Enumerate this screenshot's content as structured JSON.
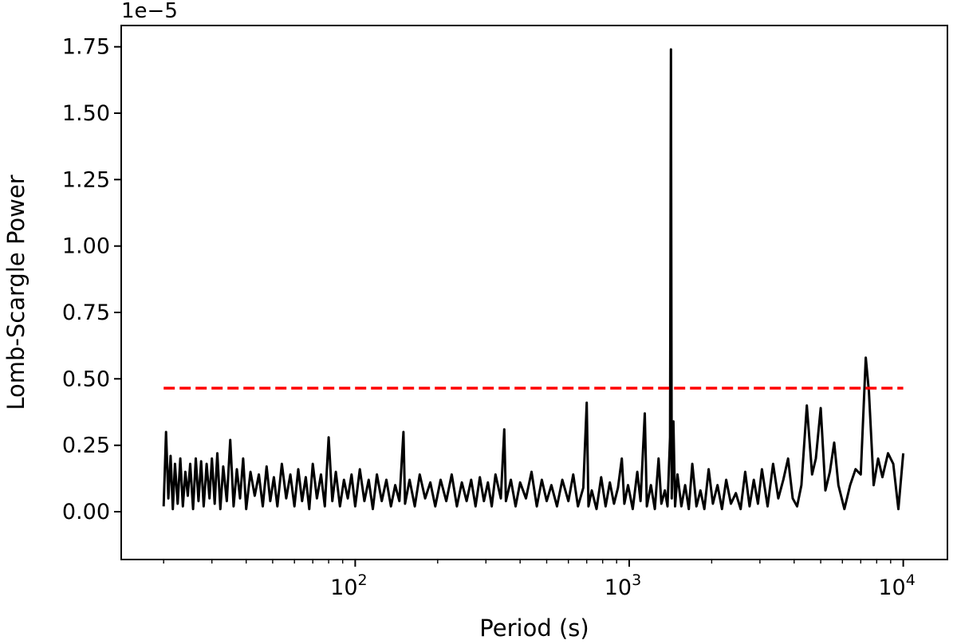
{
  "chart_data": {
    "type": "line",
    "xlabel": "Period (s)",
    "ylabel": "Lomb-Scargle Power",
    "y_offset_label": "1e−5",
    "x_scale": "log",
    "xlim": [
      14,
      14500
    ],
    "ylim": [
      -0.18,
      1.83
    ],
    "x_ticks": [
      {
        "value": 100,
        "base": "10",
        "exp": "2"
      },
      {
        "value": 1000,
        "base": "10",
        "exp": "3"
      },
      {
        "value": 10000,
        "base": "10",
        "exp": "4"
      }
    ],
    "y_ticks": [
      {
        "value": 0.0,
        "label": "0.00"
      },
      {
        "value": 0.25,
        "label": "0.25"
      },
      {
        "value": 0.5,
        "label": "0.50"
      },
      {
        "value": 0.75,
        "label": "0.75"
      },
      {
        "value": 1.0,
        "label": "1.00"
      },
      {
        "value": 1.25,
        "label": "1.25"
      },
      {
        "value": 1.5,
        "label": "1.50"
      },
      {
        "value": 1.75,
        "label": "1.75"
      }
    ],
    "grid": false,
    "legend": "none",
    "series": [
      {
        "color": "#000000",
        "style": "solid",
        "points": [
          [
            20,
            0.02
          ],
          [
            20.4,
            0.3
          ],
          [
            20.8,
            0.05
          ],
          [
            21.2,
            0.21
          ],
          [
            21.6,
            0.01
          ],
          [
            22,
            0.18
          ],
          [
            22.5,
            0.03
          ],
          [
            23,
            0.2
          ],
          [
            23.5,
            0.02
          ],
          [
            24,
            0.15
          ],
          [
            24.5,
            0.06
          ],
          [
            25,
            0.18
          ],
          [
            25.6,
            0.01
          ],
          [
            26.2,
            0.2
          ],
          [
            26.8,
            0.04
          ],
          [
            27.4,
            0.19
          ],
          [
            28,
            0.02
          ],
          [
            28.7,
            0.18
          ],
          [
            29.4,
            0.05
          ],
          [
            30,
            0.2
          ],
          [
            30.7,
            0.03
          ],
          [
            31.4,
            0.22
          ],
          [
            32.2,
            0.01
          ],
          [
            33,
            0.17
          ],
          [
            34,
            0.04
          ],
          [
            35,
            0.27
          ],
          [
            36,
            0.02
          ],
          [
            37,
            0.16
          ],
          [
            38,
            0.05
          ],
          [
            39,
            0.2
          ],
          [
            40,
            0.01
          ],
          [
            41.5,
            0.15
          ],
          [
            43,
            0.06
          ],
          [
            44.5,
            0.14
          ],
          [
            46,
            0.02
          ],
          [
            47.5,
            0.17
          ],
          [
            49,
            0.04
          ],
          [
            50.5,
            0.13
          ],
          [
            52,
            0.02
          ],
          [
            54,
            0.18
          ],
          [
            56,
            0.05
          ],
          [
            58,
            0.14
          ],
          [
            60,
            0.02
          ],
          [
            62,
            0.16
          ],
          [
            64,
            0.04
          ],
          [
            66,
            0.13
          ],
          [
            68,
            0.01
          ],
          [
            70,
            0.18
          ],
          [
            72.5,
            0.05
          ],
          [
            75,
            0.14
          ],
          [
            77.5,
            0.02
          ],
          [
            80,
            0.28
          ],
          [
            82.5,
            0.04
          ],
          [
            85,
            0.15
          ],
          [
            88,
            0.02
          ],
          [
            91,
            0.12
          ],
          [
            94,
            0.05
          ],
          [
            97,
            0.14
          ],
          [
            100,
            0.02
          ],
          [
            104,
            0.16
          ],
          [
            108,
            0.04
          ],
          [
            112,
            0.12
          ],
          [
            116,
            0.01
          ],
          [
            120,
            0.14
          ],
          [
            125,
            0.04
          ],
          [
            130,
            0.12
          ],
          [
            135,
            0.02
          ],
          [
            140,
            0.1
          ],
          [
            145,
            0.04
          ],
          [
            150,
            0.3
          ],
          [
            152,
            0.03
          ],
          [
            158,
            0.12
          ],
          [
            165,
            0.02
          ],
          [
            172,
            0.14
          ],
          [
            180,
            0.05
          ],
          [
            188,
            0.11
          ],
          [
            196,
            0.02
          ],
          [
            205,
            0.12
          ],
          [
            215,
            0.04
          ],
          [
            225,
            0.14
          ],
          [
            235,
            0.02
          ],
          [
            245,
            0.11
          ],
          [
            255,
            0.04
          ],
          [
            265,
            0.12
          ],
          [
            275,
            0.02
          ],
          [
            285,
            0.13
          ],
          [
            295,
            0.04
          ],
          [
            305,
            0.11
          ],
          [
            315,
            0.02
          ],
          [
            325,
            0.14
          ],
          [
            340,
            0.05
          ],
          [
            350,
            0.31
          ],
          [
            355,
            0.04
          ],
          [
            370,
            0.12
          ],
          [
            385,
            0.02
          ],
          [
            400,
            0.11
          ],
          [
            420,
            0.05
          ],
          [
            440,
            0.15
          ],
          [
            460,
            0.02
          ],
          [
            480,
            0.12
          ],
          [
            500,
            0.04
          ],
          [
            520,
            0.1
          ],
          [
            545,
            0.02
          ],
          [
            570,
            0.12
          ],
          [
            600,
            0.04
          ],
          [
            625,
            0.14
          ],
          [
            650,
            0.02
          ],
          [
            680,
            0.09
          ],
          [
            700,
            0.41
          ],
          [
            710,
            0.02
          ],
          [
            730,
            0.08
          ],
          [
            760,
            0.01
          ],
          [
            790,
            0.13
          ],
          [
            820,
            0.02
          ],
          [
            850,
            0.11
          ],
          [
            880,
            0.03
          ],
          [
            910,
            0.09
          ],
          [
            940,
            0.2
          ],
          [
            960,
            0.03
          ],
          [
            990,
            0.1
          ],
          [
            1030,
            0.01
          ],
          [
            1070,
            0.15
          ],
          [
            1100,
            0.04
          ],
          [
            1140,
            0.37
          ],
          [
            1160,
            0.02
          ],
          [
            1200,
            0.1
          ],
          [
            1240,
            0.01
          ],
          [
            1280,
            0.2
          ],
          [
            1310,
            0.03
          ],
          [
            1350,
            0.08
          ],
          [
            1380,
            0.02
          ],
          [
            1410,
            0.28
          ],
          [
            1420,
            1.74
          ],
          [
            1430,
            0.05
          ],
          [
            1450,
            0.34
          ],
          [
            1470,
            0.02
          ],
          [
            1500,
            0.14
          ],
          [
            1550,
            0.02
          ],
          [
            1600,
            0.1
          ],
          [
            1650,
            0.01
          ],
          [
            1700,
            0.18
          ],
          [
            1760,
            0.02
          ],
          [
            1820,
            0.08
          ],
          [
            1880,
            0.01
          ],
          [
            1950,
            0.16
          ],
          [
            2020,
            0.03
          ],
          [
            2100,
            0.1
          ],
          [
            2180,
            0.01
          ],
          [
            2260,
            0.12
          ],
          [
            2350,
            0.03
          ],
          [
            2450,
            0.07
          ],
          [
            2550,
            0.01
          ],
          [
            2650,
            0.15
          ],
          [
            2750,
            0.02
          ],
          [
            2850,
            0.12
          ],
          [
            2950,
            0.03
          ],
          [
            3050,
            0.16
          ],
          [
            3200,
            0.02
          ],
          [
            3350,
            0.18
          ],
          [
            3500,
            0.05
          ],
          [
            3650,
            0.12
          ],
          [
            3800,
            0.2
          ],
          [
            3950,
            0.05
          ],
          [
            4100,
            0.02
          ],
          [
            4250,
            0.1
          ],
          [
            4450,
            0.4
          ],
          [
            4650,
            0.14
          ],
          [
            4800,
            0.2
          ],
          [
            5000,
            0.39
          ],
          [
            5200,
            0.08
          ],
          [
            5400,
            0.15
          ],
          [
            5600,
            0.26
          ],
          [
            5800,
            0.1
          ],
          [
            6100,
            0.01
          ],
          [
            6400,
            0.1
          ],
          [
            6700,
            0.16
          ],
          [
            7000,
            0.14
          ],
          [
            7300,
            0.58
          ],
          [
            7500,
            0.45
          ],
          [
            7800,
            0.1
          ],
          [
            8100,
            0.2
          ],
          [
            8400,
            0.13
          ],
          [
            8800,
            0.22
          ],
          [
            9200,
            0.18
          ],
          [
            9600,
            0.01
          ],
          [
            10000,
            0.22
          ]
        ]
      },
      {
        "color": "#ff0000",
        "style": "dashed",
        "points": [
          [
            20,
            0.465
          ],
          [
            10000,
            0.465
          ]
        ]
      }
    ]
  }
}
